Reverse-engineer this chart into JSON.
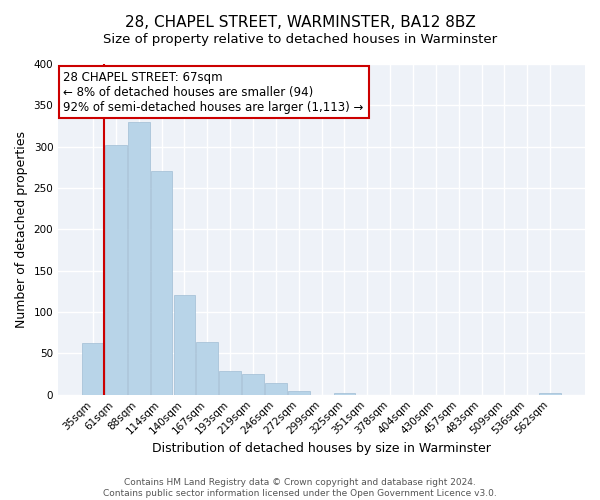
{
  "title": "28, CHAPEL STREET, WARMINSTER, BA12 8BZ",
  "subtitle": "Size of property relative to detached houses in Warminster",
  "xlabel": "Distribution of detached houses by size in Warminster",
  "ylabel": "Number of detached properties",
  "bar_labels": [
    "35sqm",
    "61sqm",
    "88sqm",
    "114sqm",
    "140sqm",
    "167sqm",
    "193sqm",
    "219sqm",
    "246sqm",
    "272sqm",
    "299sqm",
    "325sqm",
    "351sqm",
    "378sqm",
    "404sqm",
    "430sqm",
    "457sqm",
    "483sqm",
    "509sqm",
    "536sqm",
    "562sqm"
  ],
  "bar_values": [
    63,
    302,
    330,
    271,
    121,
    64,
    29,
    25,
    14,
    5,
    0,
    2,
    0,
    0,
    0,
    0,
    0,
    0,
    0,
    0,
    2
  ],
  "bar_color_normal": "#b8d4e8",
  "bar_edge_color": "#a0bdd4",
  "bar_color_highlight": "#CC0000",
  "vline_index": 1,
  "annotation_line1": "28 CHAPEL STREET: 67sqm",
  "annotation_line2": "← 8% of detached houses are smaller (94)",
  "annotation_line3": "92% of semi-detached houses are larger (1,113) →",
  "annotation_box_color": "#ffffff",
  "annotation_box_edge": "#CC0000",
  "ylim": [
    0,
    400
  ],
  "yticks": [
    0,
    50,
    100,
    150,
    200,
    250,
    300,
    350,
    400
  ],
  "footer1": "Contains HM Land Registry data © Crown copyright and database right 2024.",
  "footer2": "Contains public sector information licensed under the Open Government Licence v3.0.",
  "title_fontsize": 11,
  "subtitle_fontsize": 9.5,
  "axis_label_fontsize": 9,
  "tick_fontsize": 7.5,
  "footer_fontsize": 6.5,
  "annotation_fontsize": 8.5,
  "bg_color": "#eef2f8"
}
